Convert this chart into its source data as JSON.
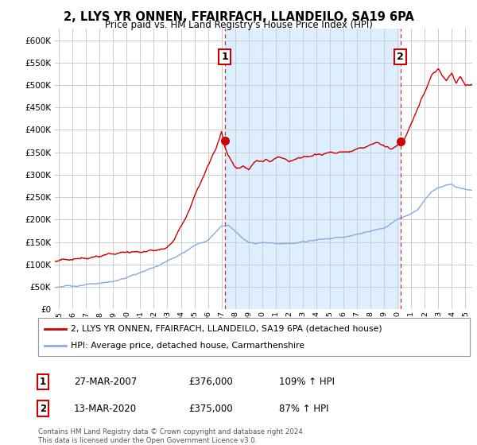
{
  "title": "2, LLYS YR ONNEN, FFAIRFACH, LLANDEILO, SA19 6PA",
  "subtitle": "Price paid vs. HM Land Registry's House Price Index (HPI)",
  "ylabel_ticks": [
    0,
    50000,
    100000,
    150000,
    200000,
    250000,
    300000,
    350000,
    400000,
    450000,
    500000,
    550000,
    600000
  ],
  "ylim": [
    0,
    625000
  ],
  "xlim_start": 1994.7,
  "xlim_end": 2025.5,
  "sale1_x": 2007.23,
  "sale1_y": 376000,
  "sale1_label": "1",
  "sale2_x": 2020.2,
  "sale2_y": 375000,
  "sale2_label": "2",
  "property_color": "#cc0000",
  "hpi_color": "#88aadd",
  "shade_color": "#ddeeff",
  "legend_property": "2, LLYS YR ONNEN, FFAIRFACH, LLANDEILO, SA19 6PA (detached house)",
  "legend_hpi": "HPI: Average price, detached house, Carmarthenshire",
  "footer": "Contains HM Land Registry data © Crown copyright and database right 2024.\nThis data is licensed under the Open Government Licence v3.0.",
  "background_color": "#ffffff",
  "grid_color": "#cccccc",
  "hpi_waypoints_x": [
    1994.7,
    1995,
    1996,
    1997,
    1998,
    1999,
    2000,
    2001,
    2002,
    2003,
    2004,
    2005,
    2006,
    2007,
    2007.5,
    2008,
    2008.5,
    2009,
    2009.5,
    2010,
    2011,
    2012,
    2013,
    2014,
    2015,
    2016,
    2017,
    2018,
    2019,
    2020,
    2020.5,
    2021,
    2021.5,
    2022,
    2022.5,
    2023,
    2023.5,
    2024,
    2024.5,
    2025.5
  ],
  "hpi_waypoints_y": [
    48000,
    50000,
    52000,
    53000,
    56000,
    60000,
    68000,
    78000,
    90000,
    105000,
    122000,
    140000,
    155000,
    185000,
    188000,
    175000,
    162000,
    152000,
    150000,
    153000,
    152000,
    151000,
    153000,
    157000,
    160000,
    163000,
    167000,
    172000,
    178000,
    200000,
    205000,
    210000,
    220000,
    240000,
    258000,
    265000,
    270000,
    272000,
    268000,
    265000
  ],
  "prop_waypoints_x": [
    1994.7,
    1995,
    1995.5,
    1996,
    1996.5,
    1997,
    1997.5,
    1998,
    1998.5,
    1999,
    1999.5,
    2000,
    2000.5,
    2001,
    2001.5,
    2002,
    2002.5,
    2003,
    2003.5,
    2004,
    2004.5,
    2005,
    2005.5,
    2006,
    2006.3,
    2006.6,
    2007.0,
    2007.23,
    2007.5,
    2007.8,
    2008.0,
    2008.3,
    2008.6,
    2009.0,
    2009.3,
    2009.6,
    2010.0,
    2010.3,
    2010.6,
    2011.0,
    2011.3,
    2011.6,
    2012.0,
    2012.3,
    2012.6,
    2013.0,
    2013.5,
    2014.0,
    2014.5,
    2015.0,
    2015.5,
    2016.0,
    2016.5,
    2017.0,
    2017.5,
    2018.0,
    2018.5,
    2019.0,
    2019.5,
    2020.0,
    2020.2,
    2020.5,
    2021.0,
    2021.5,
    2022.0,
    2022.5,
    2023.0,
    2023.3,
    2023.6,
    2024.0,
    2024.3,
    2024.6,
    2025.0,
    2025.5
  ],
  "prop_waypoints_y": [
    108000,
    110000,
    112000,
    113000,
    115000,
    117000,
    120000,
    123000,
    126000,
    128000,
    130000,
    133000,
    136000,
    138000,
    140000,
    143000,
    148000,
    155000,
    170000,
    200000,
    230000,
    268000,
    300000,
    335000,
    355000,
    370000,
    410000,
    376000,
    355000,
    340000,
    330000,
    325000,
    330000,
    320000,
    335000,
    345000,
    340000,
    345000,
    340000,
    348000,
    352000,
    348000,
    342000,
    345000,
    348000,
    350000,
    352000,
    356000,
    358000,
    360000,
    355000,
    360000,
    362000,
    368000,
    372000,
    376000,
    380000,
    370000,
    362000,
    368000,
    375000,
    380000,
    410000,
    445000,
    480000,
    520000,
    535000,
    520000,
    510000,
    525000,
    505000,
    520000,
    500000,
    500000
  ]
}
